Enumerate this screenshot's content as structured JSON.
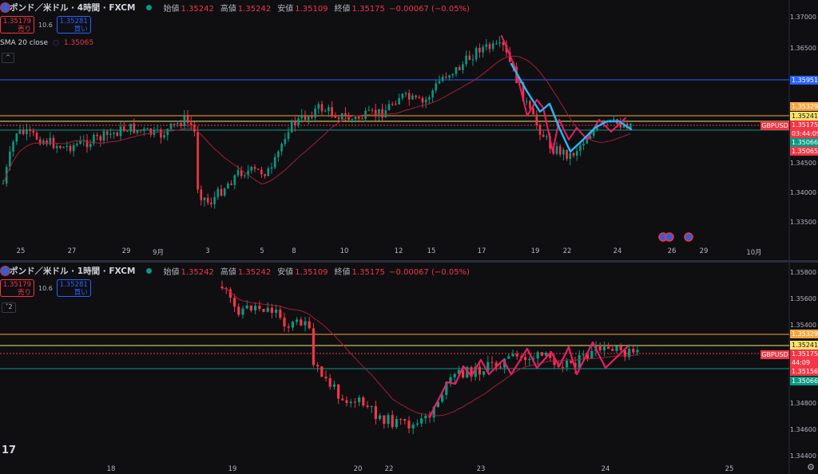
{
  "colors": {
    "up": "#089981",
    "down": "#f23645",
    "sma": "#a51e34",
    "blue_line": "#29b6f6",
    "pink_line": "#e91e63"
  },
  "top_pane": {
    "symbol": "ポンド／米ドル · 4時間 · FXCM",
    "open_label": "始値",
    "open": "1.35242",
    "high_label": "高値",
    "high": "1.35242",
    "low_label": "安値",
    "low": "1.35109",
    "close_label": "終値",
    "close": "1.35175",
    "change": "−0.00067 (−0.05%)",
    "sell_price": "1.35179",
    "sell_label": "売り",
    "spread": "10.6",
    "buy_price": "1.35281",
    "buy_label": "買い",
    "sma_label": "SMA 20 close",
    "sma_value": "1.35065",
    "collapse_icon": "chevron-up-icon",
    "price_axis": [
      "1.37000",
      "1.36500",
      "1.35951",
      "1.35329",
      "1.35241",
      "1.35175",
      "03:44:09",
      "1.35066",
      "1.35065",
      "1.34500",
      "1.34000",
      "1.33500"
    ],
    "symbol_tag": "GBPUSD",
    "x_axis": [
      "25",
      "27",
      "29",
      "9月",
      "3",
      "5",
      "8",
      "10",
      "12",
      "15",
      "17",
      "19",
      "22",
      "24",
      "26",
      "29",
      "10月"
    ]
  },
  "bottom_pane": {
    "symbol": "ポンド／米ドル · 1時間 · FXCM",
    "open_label": "始値",
    "open": "1.35242",
    "high_label": "高値",
    "high": "1.35242",
    "low_label": "安値",
    "low": "1.35109",
    "close_label": "終値",
    "close": "1.35175",
    "change": "−0.00067 (−0.05%)",
    "sell_price": "1.35179",
    "sell_label": "売り",
    "spread": "10.6",
    "buy_price": "1.35281",
    "buy_label": "買い",
    "indicator_count": "2",
    "price_axis": [
      "1.35800",
      "1.35600",
      "1.35400",
      "1.35329",
      "1.35241",
      "1.35175",
      "44:09",
      "1.35156",
      "1.35066",
      "1.34800",
      "1.34600",
      "1.34400"
    ],
    "symbol_tag": "GBPUSD",
    "x_axis": [
      "18",
      "19",
      "20",
      "22",
      "23",
      "24",
      "25"
    ]
  },
  "logo": "17",
  "settings_icon": "gear-icon"
}
